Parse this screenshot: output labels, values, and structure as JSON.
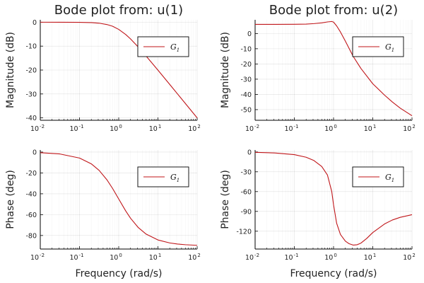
{
  "chart_data": [
    {
      "type": "line",
      "id": "mag1",
      "title": "Bode plot from: u(1)",
      "xlabel": "",
      "ylabel": "Magnitude (dB)",
      "xscale": "log",
      "xlim": [
        0.01,
        100
      ],
      "ylim": [
        -41,
        1
      ],
      "xticks": [
        "10 -2",
        "10 -1",
        "10 0",
        "10 1",
        "10 2"
      ],
      "yticks": [
        0,
        -10,
        -20,
        -30,
        -40
      ],
      "legend": {
        "entries": [
          "G1"
        ],
        "placement": "top-right"
      },
      "series": [
        {
          "name": "G1",
          "color": "#c0161a",
          "x": [
            0.01,
            0.0316,
            0.1,
            0.2,
            0.3162,
            0.5,
            0.7,
            1,
            1.5,
            2,
            3.162,
            5,
            10,
            20,
            31.62,
            50,
            100
          ],
          "y": [
            0,
            -0.004,
            -0.04,
            -0.17,
            -0.41,
            -0.97,
            -1.7,
            -3.01,
            -5.12,
            -6.99,
            -10.41,
            -14.15,
            -20.04,
            -26.03,
            -30.0,
            -33.98,
            -40.0
          ]
        }
      ]
    },
    {
      "type": "line",
      "id": "mag2",
      "title": "Bode plot from: u(2)",
      "xlabel": "",
      "ylabel": "Magnitude (dB)",
      "xscale": "log",
      "xlim": [
        0.01,
        100
      ],
      "ylim": [
        -57,
        9
      ],
      "xticks": [
        "10 -2",
        "10 -1",
        "10 0",
        "10 1",
        "10 2"
      ],
      "yticks": [
        0,
        -10,
        -20,
        -30,
        -40,
        -50
      ],
      "legend": {
        "entries": [
          "G1"
        ],
        "placement": "top-right"
      },
      "series": [
        {
          "name": "G1",
          "color": "#c0161a",
          "x": [
            0.01,
            0.0316,
            0.1,
            0.2,
            0.3162,
            0.5,
            0.7,
            0.9,
            1,
            1.2,
            1.5,
            2,
            3.162,
            5,
            10,
            20,
            31.62,
            50,
            100
          ],
          "y": [
            6,
            6,
            6.05,
            6.2,
            6.5,
            7,
            7.6,
            7.9,
            7.5,
            5,
            1,
            -5,
            -15,
            -23,
            -33,
            -40.5,
            -45,
            -49,
            -54
          ]
        }
      ]
    },
    {
      "type": "line",
      "id": "phase1",
      "title": "",
      "xlabel": "Frequency (rad/s)",
      "ylabel": "Phase (deg)",
      "xscale": "log",
      "xlim": [
        0.01,
        100
      ],
      "ylim": [
        -93,
        2
      ],
      "xticks": [
        "10 -2",
        "10 -1",
        "10 0",
        "10 1",
        "10 2"
      ],
      "yticks": [
        0,
        -20,
        -40,
        -60,
        -80
      ],
      "legend": {
        "entries": [
          "G1"
        ],
        "placement": "top-right"
      },
      "series": [
        {
          "name": "G1",
          "color": "#c0161a",
          "x": [
            0.01,
            0.0316,
            0.1,
            0.2,
            0.3162,
            0.5,
            0.7,
            1,
            1.5,
            2,
            3.162,
            5,
            10,
            20,
            31.62,
            50,
            100
          ],
          "y": [
            -0.57,
            -1.81,
            -5.71,
            -11.31,
            -17.55,
            -26.57,
            -34.99,
            -45,
            -56.31,
            -63.43,
            -72.45,
            -78.69,
            -84.29,
            -87.14,
            -88.19,
            -88.85,
            -89.43
          ]
        }
      ]
    },
    {
      "type": "line",
      "id": "phase2",
      "title": "",
      "xlabel": "Frequency (rad/s)",
      "ylabel": "Phase (deg)",
      "xscale": "log",
      "xlim": [
        0.01,
        100
      ],
      "ylim": [
        -147,
        3
      ],
      "xticks": [
        "10 -2",
        "10 -1",
        "10 0",
        "10 1",
        "10 2"
      ],
      "yticks": [
        0,
        -30,
        -60,
        -90,
        -120
      ],
      "legend": {
        "entries": [
          "G1"
        ],
        "placement": "top-right"
      },
      "series": [
        {
          "name": "G1",
          "color": "#c0161a",
          "x": [
            0.01,
            0.0316,
            0.1,
            0.2,
            0.3162,
            0.5,
            0.7,
            0.9,
            1,
            1.2,
            1.5,
            2,
            2.5,
            3.162,
            4,
            5,
            7,
            10,
            20,
            31.62,
            50,
            100
          ],
          "y": [
            -0.5,
            -1.5,
            -4,
            -8,
            -13,
            -22,
            -35,
            -60,
            -80,
            -108,
            -125,
            -135,
            -139,
            -141,
            -140.5,
            -138,
            -131,
            -122,
            -109,
            -103,
            -99,
            -95
          ]
        }
      ]
    }
  ]
}
